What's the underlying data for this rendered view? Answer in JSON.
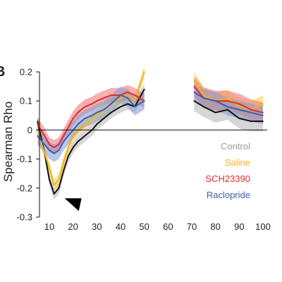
{
  "chart_data": {
    "type": "line",
    "panel_label": "B",
    "title": "",
    "xlabel": "",
    "ylabel": "Spearman Rho",
    "xlim": [
      5,
      100
    ],
    "ylim": [
      -0.3,
      0.2
    ],
    "xticks": [
      10,
      20,
      30,
      40,
      50,
      60,
      70,
      80,
      90,
      100
    ],
    "xtick_labels": [
      "10",
      "20",
      "30",
      "40",
      "50",
      "60",
      "70",
      "80",
      "90",
      "100"
    ],
    "yticks": [
      0.2,
      0.1,
      0,
      -0.1,
      -0.2,
      -0.3
    ],
    "ytick_labels": [
      "0.2",
      "0.1",
      "0",
      "-0.1",
      "-0.2",
      "-0.3"
    ],
    "zero_line": true,
    "grid": false,
    "legend_position": "bottom-right",
    "shaded_error_bands": true,
    "annotations": [
      {
        "type": "triangle-marker",
        "x": 20,
        "y": -0.24,
        "direction": "down-right"
      }
    ],
    "series": [
      {
        "name": "Control",
        "color": "#111111",
        "band_color": "#b5b5b5",
        "segments": [
          {
            "x": [
              5,
              8,
              10,
              12,
              14,
              16,
              18,
              20,
              22,
              25,
              28,
              30,
              33,
              36,
              40,
              43,
              46,
              48,
              50
            ],
            "y": [
              0.03,
              -0.08,
              -0.17,
              -0.22,
              -0.2,
              -0.14,
              -0.09,
              -0.06,
              -0.04,
              -0.02,
              0.0,
              0.02,
              0.04,
              0.06,
              0.08,
              0.09,
              0.08,
              0.11,
              0.14
            ],
            "err": [
              0.02,
              0.02,
              0.02,
              0.02,
              0.02,
              0.02,
              0.02,
              0.02,
              0.02,
              0.02,
              0.02,
              0.02,
              0.02,
              0.02,
              0.02,
              0.02,
              0.02,
              0.02,
              0.02
            ]
          },
          {
            "x": [
              71,
              75,
              80,
              85,
              90,
              95,
              100
            ],
            "y": [
              0.1,
              0.08,
              0.06,
              0.07,
              0.04,
              0.03,
              0.03
            ],
            "err": [
              0.035,
              0.035,
              0.035,
              0.035,
              0.035,
              0.035,
              0.035
            ]
          }
        ]
      },
      {
        "name": "Saline",
        "color": "#f2b21a",
        "band_color": "#f6cf55",
        "segments": [
          {
            "x": [
              5,
              8,
              10,
              12,
              14,
              16,
              18,
              20,
              22,
              25,
              28,
              30,
              33,
              36,
              40,
              43,
              46,
              48,
              50
            ],
            "y": [
              0.0,
              -0.08,
              -0.13,
              -0.19,
              -0.17,
              -0.11,
              -0.06,
              -0.02,
              0.0,
              0.02,
              0.04,
              0.05,
              0.07,
              0.09,
              0.11,
              0.12,
              0.1,
              0.15,
              0.2
            ],
            "err": [
              0.02,
              0.02,
              0.02,
              0.02,
              0.02,
              0.02,
              0.02,
              0.02,
              0.02,
              0.02,
              0.02,
              0.02,
              0.02,
              0.02,
              0.02,
              0.02,
              0.02,
              0.02,
              0.02
            ]
          },
          {
            "x": [
              71,
              75,
              80,
              85,
              90,
              95,
              100
            ],
            "y": [
              0.17,
              0.12,
              0.1,
              0.11,
              0.08,
              0.07,
              0.09
            ],
            "err": [
              0.03,
              0.03,
              0.03,
              0.03,
              0.03,
              0.03,
              0.03
            ]
          }
        ]
      },
      {
        "name": "SCH23390",
        "color": "#e32a2a",
        "band_color": "#ef6f6f",
        "segments": [
          {
            "x": [
              5,
              8,
              10,
              12,
              14,
              16,
              18,
              20,
              22,
              25,
              28,
              30,
              33,
              36,
              40,
              43,
              46,
              48,
              50
            ],
            "y": [
              0.02,
              -0.02,
              -0.05,
              -0.06,
              -0.05,
              -0.02,
              0.01,
              0.04,
              0.06,
              0.08,
              0.09,
              0.1,
              0.11,
              0.12,
              0.12,
              0.13,
              0.12,
              0.11,
              0.1
            ],
            "err": [
              0.025,
              0.025,
              0.025,
              0.025,
              0.025,
              0.025,
              0.025,
              0.025,
              0.025,
              0.025,
              0.025,
              0.025,
              0.025,
              0.025,
              0.025,
              0.025,
              0.025,
              0.025,
              0.025
            ]
          },
          {
            "x": [
              71,
              75,
              80,
              85,
              90,
              95,
              100
            ],
            "y": [
              0.15,
              0.11,
              0.1,
              0.1,
              0.09,
              0.07,
              0.06
            ],
            "err": [
              0.035,
              0.035,
              0.035,
              0.035,
              0.035,
              0.035,
              0.035
            ]
          }
        ]
      },
      {
        "name": "Raclopride",
        "color": "#3a5fb0",
        "band_color": "#7f9ad6",
        "segments": [
          {
            "x": [
              5,
              8,
              10,
              12,
              14,
              16,
              18,
              20,
              22,
              25,
              28,
              30,
              33,
              36,
              40,
              43,
              46,
              48,
              50
            ],
            "y": [
              -0.02,
              -0.05,
              -0.07,
              -0.08,
              -0.07,
              -0.04,
              -0.02,
              0.0,
              0.02,
              0.04,
              0.05,
              0.06,
              0.07,
              0.09,
              0.12,
              0.11,
              0.08,
              0.09,
              0.1
            ],
            "err": [
              0.03,
              0.03,
              0.03,
              0.03,
              0.03,
              0.03,
              0.03,
              0.03,
              0.03,
              0.03,
              0.03,
              0.03,
              0.03,
              0.03,
              0.03,
              0.03,
              0.03,
              0.03,
              0.03
            ]
          },
          {
            "x": [
              71,
              75,
              80,
              85,
              90,
              95,
              100
            ],
            "y": [
              0.13,
              0.11,
              0.1,
              0.08,
              0.07,
              0.06,
              0.05
            ],
            "err": [
              0.03,
              0.03,
              0.03,
              0.03,
              0.03,
              0.03,
              0.03
            ]
          }
        ]
      }
    ]
  }
}
